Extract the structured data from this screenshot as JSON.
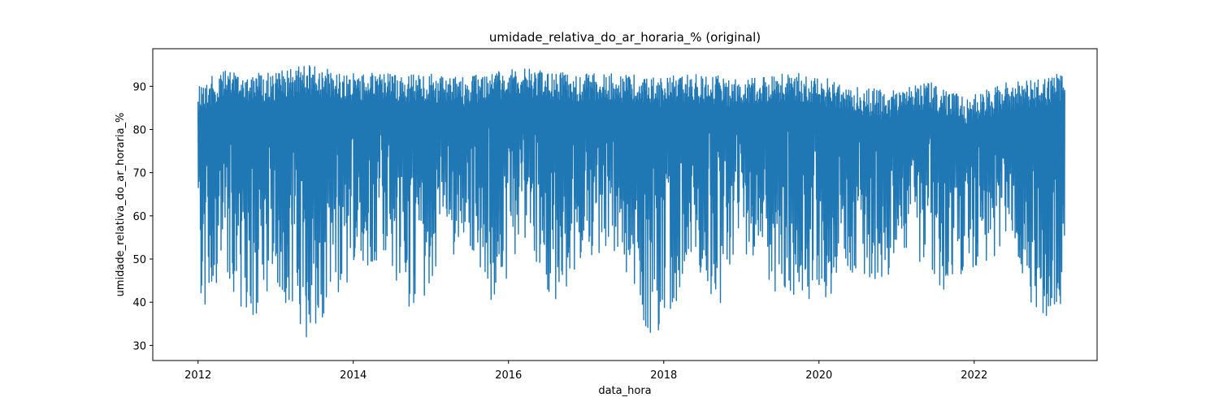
{
  "chart_data": {
    "type": "line",
    "title": "umidade_relativa_do_ar_horaria_% (original)",
    "xlabel": "data_hora",
    "ylabel": "umidade_relativa_do_ar_horaria_%",
    "x_ticks": [
      "2012",
      "2014",
      "2016",
      "2018",
      "2020",
      "2022"
    ],
    "y_ticks": [
      "30",
      "40",
      "50",
      "60",
      "70",
      "80",
      "90"
    ],
    "xlim": [
      "2011-06-01",
      "2023-08-01"
    ],
    "ylim": [
      26.5,
      98.7
    ],
    "x_range": [
      "2012-01-01",
      "2023-03-01"
    ],
    "grid": false,
    "series": [
      {
        "color": "#1f77b4",
        "upper_envelope": [
          [
            "2012-01",
            91
          ],
          [
            "2012-06",
            94
          ],
          [
            "2012-12",
            93
          ],
          [
            "2013-06",
            95
          ],
          [
            "2013-12",
            93
          ],
          [
            "2014-06",
            93
          ],
          [
            "2014-12",
            93
          ],
          [
            "2015-06",
            92
          ],
          [
            "2015-12",
            94
          ],
          [
            "2016-06",
            94
          ],
          [
            "2016-12",
            93
          ],
          [
            "2017-06",
            93
          ],
          [
            "2017-12",
            92
          ],
          [
            "2018-06",
            93
          ],
          [
            "2018-12",
            92
          ],
          [
            "2019-06",
            93
          ],
          [
            "2019-12",
            93
          ],
          [
            "2020-06",
            90
          ],
          [
            "2020-12",
            89
          ],
          [
            "2021-06",
            91
          ],
          [
            "2021-12",
            88
          ],
          [
            "2022-06",
            91
          ],
          [
            "2022-12",
            92
          ],
          [
            "2023-03",
            94
          ]
        ],
        "lower_envelope": [
          [
            "2012-01",
            37
          ],
          [
            "2012-06",
            43
          ],
          [
            "2012-09",
            34
          ],
          [
            "2013-01",
            45
          ],
          [
            "2013-05",
            31
          ],
          [
            "2013-09",
            36
          ],
          [
            "2014-01",
            46
          ],
          [
            "2014-06",
            51
          ],
          [
            "2014-10",
            36
          ],
          [
            "2015-03",
            50
          ],
          [
            "2015-08",
            52
          ],
          [
            "2015-10",
            36
          ],
          [
            "2016-04",
            55
          ],
          [
            "2016-08",
            38
          ],
          [
            "2017-01",
            50
          ],
          [
            "2017-06",
            52
          ],
          [
            "2017-10",
            34
          ],
          [
            "2017-12",
            30
          ],
          [
            "2018-06",
            50
          ],
          [
            "2018-09",
            36
          ],
          [
            "2019-01",
            52
          ],
          [
            "2019-07",
            40
          ],
          [
            "2020-01",
            39
          ],
          [
            "2020-06",
            46
          ],
          [
            "2020-11",
            44
          ],
          [
            "2021-03",
            52
          ],
          [
            "2021-08",
            42
          ],
          [
            "2022-01",
            48
          ],
          [
            "2022-07",
            52
          ],
          [
            "2022-11",
            33
          ],
          [
            "2023-03",
            41
          ]
        ]
      }
    ]
  }
}
